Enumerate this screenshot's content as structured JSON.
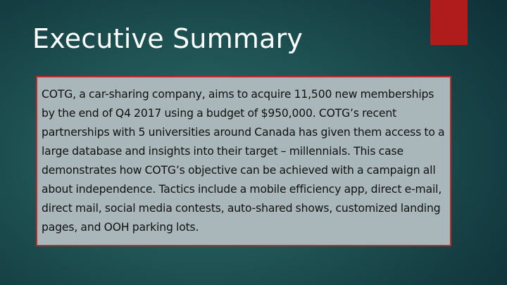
{
  "slide": {
    "title": "Executive Summary",
    "summary": "COTG, a car-sharing company, aims to acquire 11,500 new memberships by the end of Q4 2017 using a budget of $950,000. COTG’s recent partnerships with 5 universities around Canada has given them access to a large database and insights into their target – millennials. This case demonstrates how COTG’s objective can be achieved with a campaign all about independence. Tactics include a mobile efficiency app, direct e-mail, direct mail, social media contests, auto-shared shows, customized landing pages, and OOH parking lots."
  },
  "colors": {
    "background_center": "#2f6a6a",
    "background_edge": "#0f3238",
    "accent": "#b01b1b",
    "box_fill": "#a9b7ba",
    "box_border": "#c02a2a",
    "title_text": "#ffffff",
    "body_text": "#111111"
  }
}
